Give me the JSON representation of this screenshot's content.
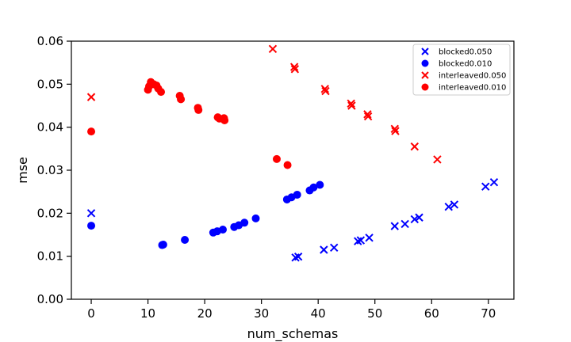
{
  "chart_data": {
    "type": "scatter",
    "title": "",
    "xlabel": "num_schemas",
    "ylabel": "mse",
    "xlim": [
      -3.5,
      74.5
    ],
    "ylim": [
      0,
      0.06
    ],
    "xticks": [
      0,
      10,
      20,
      30,
      40,
      50,
      60,
      70
    ],
    "yticks": [
      0.0,
      0.01,
      0.02,
      0.03,
      0.04,
      0.05,
      0.06
    ],
    "ytick_labels": [
      "0.00",
      "0.01",
      "0.02",
      "0.03",
      "0.04",
      "0.05",
      "0.06"
    ],
    "grid": false,
    "legend_position": "top-right",
    "series": [
      {
        "name": "blocked0.050",
        "marker": "x",
        "color": "#0000ff",
        "points": [
          [
            0,
            0.02
          ],
          [
            36,
            0.0097
          ],
          [
            36.5,
            0.0099
          ],
          [
            41,
            0.0115
          ],
          [
            42.8,
            0.012
          ],
          [
            47,
            0.0135
          ],
          [
            47.5,
            0.0137
          ],
          [
            49,
            0.0143
          ],
          [
            53.5,
            0.017
          ],
          [
            55.3,
            0.0175
          ],
          [
            57,
            0.0186
          ],
          [
            57.8,
            0.019
          ],
          [
            63,
            0.0215
          ],
          [
            64,
            0.022
          ],
          [
            69.5,
            0.0262
          ],
          [
            71,
            0.0272
          ]
        ]
      },
      {
        "name": "blocked0.010",
        "marker": "o",
        "color": "#0000ff",
        "points": [
          [
            0,
            0.0171
          ],
          [
            12.5,
            0.0126
          ],
          [
            12.7,
            0.0127
          ],
          [
            16.5,
            0.0138
          ],
          [
            21.5,
            0.0155
          ],
          [
            22.2,
            0.0158
          ],
          [
            23.2,
            0.0162
          ],
          [
            25.2,
            0.0168
          ],
          [
            26,
            0.0172
          ],
          [
            27,
            0.0178
          ],
          [
            29,
            0.0188
          ],
          [
            34.5,
            0.0232
          ],
          [
            35.3,
            0.0237
          ],
          [
            36.3,
            0.0243
          ],
          [
            38.5,
            0.0253
          ],
          [
            39.2,
            0.026
          ],
          [
            40.3,
            0.0266
          ]
        ]
      },
      {
        "name": "interleaved0.050",
        "marker": "x",
        "color": "#ff0000",
        "points": [
          [
            0,
            0.047
          ],
          [
            32,
            0.0582
          ],
          [
            35.8,
            0.054
          ],
          [
            35.9,
            0.0535
          ],
          [
            41.2,
            0.0489
          ],
          [
            41.3,
            0.0484
          ],
          [
            45.8,
            0.0455
          ],
          [
            45.9,
            0.045
          ],
          [
            48.7,
            0.043
          ],
          [
            48.8,
            0.0425
          ],
          [
            53.5,
            0.0396
          ],
          [
            53.6,
            0.0391
          ],
          [
            57,
            0.0355
          ],
          [
            61,
            0.0325
          ]
        ]
      },
      {
        "name": "interleaved0.010",
        "marker": "o",
        "color": "#ff0000",
        "points": [
          [
            0,
            0.039
          ],
          [
            10,
            0.0487
          ],
          [
            10.2,
            0.0495
          ],
          [
            10.5,
            0.0505
          ],
          [
            11,
            0.05
          ],
          [
            11.5,
            0.0497
          ],
          [
            11.8,
            0.049
          ],
          [
            12.3,
            0.0482
          ],
          [
            15.6,
            0.0473
          ],
          [
            15.8,
            0.0465
          ],
          [
            18.8,
            0.0445
          ],
          [
            18.9,
            0.044
          ],
          [
            22.3,
            0.0423
          ],
          [
            22.6,
            0.042
          ],
          [
            23.4,
            0.0421
          ],
          [
            23.5,
            0.0416
          ],
          [
            32.7,
            0.0326
          ],
          [
            34.6,
            0.0312
          ]
        ]
      }
    ]
  }
}
